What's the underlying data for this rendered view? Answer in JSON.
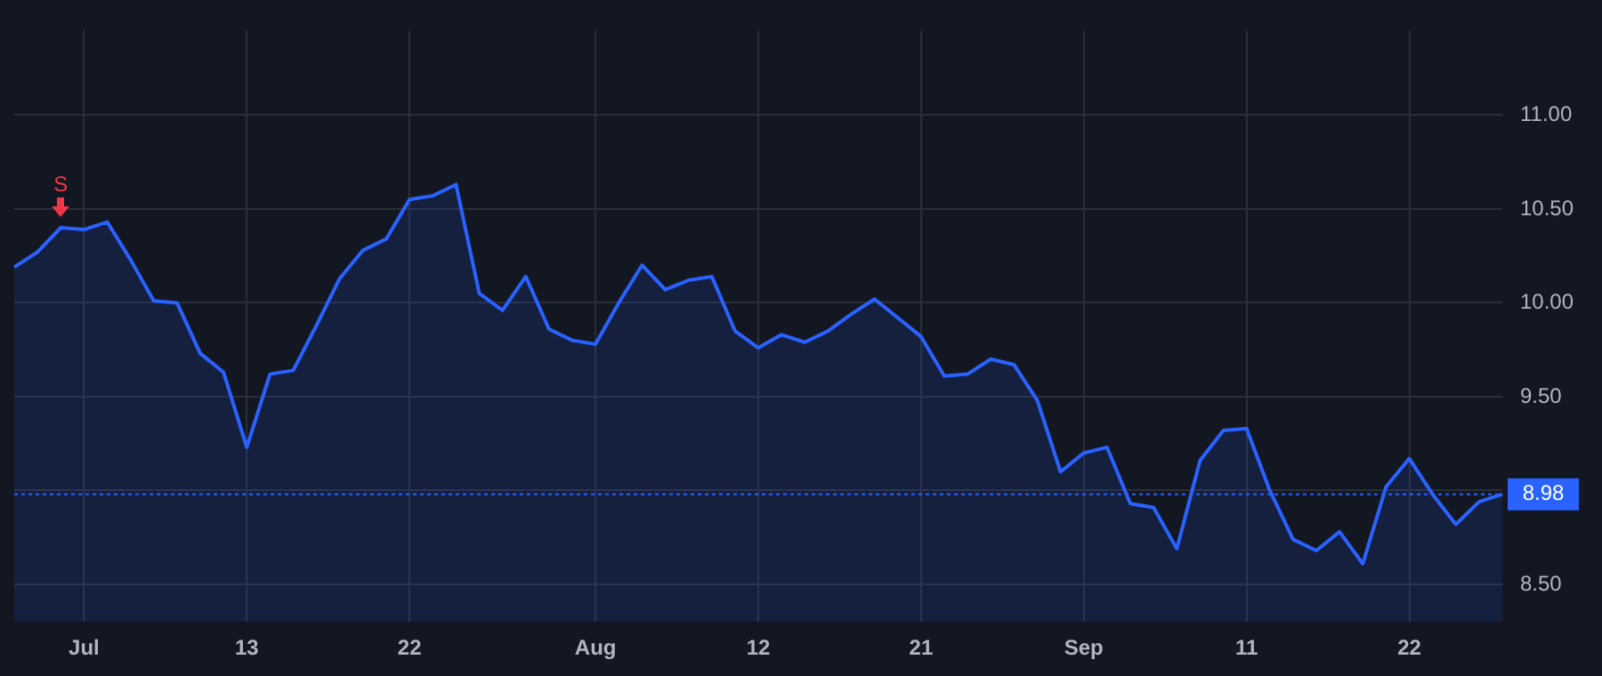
{
  "chart_data": {
    "type": "area",
    "categories": [
      null,
      null,
      null,
      "Jul",
      null,
      null,
      null,
      null,
      null,
      null,
      "13",
      null,
      null,
      null,
      null,
      null,
      null,
      "22",
      null,
      null,
      null,
      null,
      null,
      null,
      null,
      "Aug",
      null,
      null,
      null,
      null,
      null,
      null,
      "12",
      null,
      null,
      null,
      null,
      null,
      null,
      "21",
      null,
      null,
      null,
      null,
      null,
      null,
      "Sep",
      null,
      null,
      null,
      null,
      null,
      null,
      "11",
      null,
      null,
      null,
      null,
      null,
      null,
      "22",
      null,
      null,
      null,
      null
    ],
    "series": [
      {
        "color": "#2962ff",
        "values": [
          10.19,
          10.27,
          10.4,
          10.39,
          10.43,
          10.23,
          10.01,
          10.0,
          9.73,
          9.63,
          9.23,
          9.62,
          9.64,
          9.88,
          10.13,
          10.28,
          10.34,
          10.55,
          10.57,
          10.63,
          10.05,
          9.96,
          10.14,
          9.86,
          9.8,
          9.78,
          10.0,
          10.2,
          10.07,
          10.12,
          10.14,
          9.85,
          9.76,
          9.83,
          9.79,
          9.85,
          9.94,
          10.02,
          9.92,
          9.82,
          9.61,
          9.62,
          9.7,
          9.67,
          9.48,
          9.1,
          9.2,
          9.23,
          8.93,
          8.91,
          8.69,
          9.16,
          9.32,
          9.33,
          9.0,
          8.74,
          8.68,
          8.78,
          8.61,
          9.02,
          9.17,
          8.98,
          8.82,
          8.94,
          8.98
        ]
      }
    ],
    "ylim": [
      8.3,
      11.45
    ],
    "yticks": [
      {
        "value": 8.5,
        "label": "8.50"
      },
      {
        "value": 9,
        "label": null
      },
      {
        "value": 9.5,
        "label": "9.50"
      },
      {
        "value": 10,
        "label": "10.00"
      },
      {
        "value": 10.5,
        "label": "10.50"
      },
      {
        "value": 11,
        "label": "11.00"
      }
    ],
    "grid": true,
    "legend": false,
    "ref_lines": [
      {
        "axis": "y",
        "value": 8.98,
        "label": "8.98",
        "color": "#2962ff",
        "line_style": "dotted"
      }
    ],
    "annotations": [
      {
        "text": "S",
        "y": 10.4
      }
    ]
  }
}
